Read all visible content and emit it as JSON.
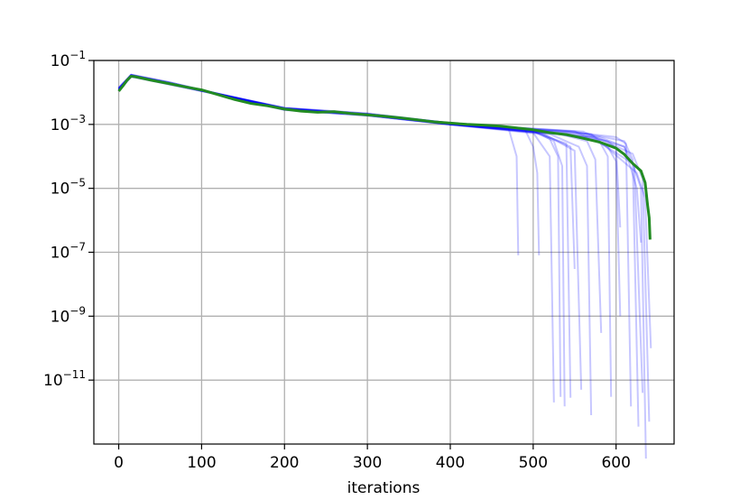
{
  "chart_data": {
    "type": "line",
    "title": "",
    "xlabel": "iterations",
    "ylabel": "",
    "yscale": "log",
    "xlim": [
      -30,
      670
    ],
    "ylim": [
      1e-13,
      0.1
    ],
    "x_ticks": [
      0,
      100,
      200,
      300,
      400,
      500,
      600
    ],
    "y_ticks": [
      {
        "value": 0.1,
        "base": "10",
        "exp": "−1"
      },
      {
        "value": 0.001,
        "base": "10",
        "exp": "−3"
      },
      {
        "value": 1e-05,
        "base": "10",
        "exp": "−5"
      },
      {
        "value": 1e-07,
        "base": "10",
        "exp": "−7"
      },
      {
        "value": 1e-09,
        "base": "10",
        "exp": "−9"
      },
      {
        "value": 1e-11,
        "base": "10",
        "exp": "−11"
      }
    ],
    "grid": true,
    "colors": {
      "runs": "#0000ff",
      "mean": "#228b22",
      "grid": "#b0b0b0"
    },
    "series": [
      {
        "role": "mean",
        "points": [
          [
            0,
            0.011
          ],
          [
            5,
            0.016
          ],
          [
            10,
            0.024
          ],
          [
            15,
            0.032
          ],
          [
            20,
            0.031
          ],
          [
            40,
            0.024
          ],
          [
            60,
            0.019
          ],
          [
            80,
            0.015
          ],
          [
            100,
            0.012
          ],
          [
            120,
            0.0085
          ],
          [
            140,
            0.006
          ],
          [
            160,
            0.0045
          ],
          [
            180,
            0.0038
          ],
          [
            200,
            0.003
          ],
          [
            220,
            0.0026
          ],
          [
            240,
            0.0024
          ],
          [
            260,
            0.0025
          ],
          [
            280,
            0.0022
          ],
          [
            300,
            0.002
          ],
          [
            320,
            0.0018
          ],
          [
            340,
            0.0016
          ],
          [
            360,
            0.0014
          ],
          [
            380,
            0.0012
          ],
          [
            400,
            0.0011
          ],
          [
            420,
            0.001
          ],
          [
            440,
            0.00095
          ],
          [
            460,
            0.00088
          ],
          [
            480,
            0.00078
          ],
          [
            500,
            0.00068
          ],
          [
            520,
            0.00055
          ],
          [
            540,
            0.00048
          ],
          [
            560,
            0.00037
          ],
          [
            580,
            0.00028
          ],
          [
            600,
            0.00018
          ],
          [
            610,
            0.000115
          ],
          [
            620,
            6e-05
          ],
          [
            630,
            3.5e-05
          ],
          [
            635,
            1.5e-05
          ],
          [
            638,
            3e-06
          ],
          [
            640,
            1.2e-06
          ],
          [
            641,
            2.5e-07
          ]
        ]
      },
      {
        "role": "run",
        "points": [
          [
            0,
            0.013
          ],
          [
            15,
            0.035
          ],
          [
            60,
            0.02
          ],
          [
            120,
            0.009
          ],
          [
            200,
            0.0032
          ],
          [
            300,
            0.0021
          ],
          [
            400,
            0.0011
          ],
          [
            470,
            0.0008
          ],
          [
            480,
            0.0001
          ],
          [
            482,
            8e-08
          ]
        ]
      },
      {
        "role": "run",
        "points": [
          [
            0,
            0.012
          ],
          [
            15,
            0.033
          ],
          [
            60,
            0.019
          ],
          [
            120,
            0.0088
          ],
          [
            200,
            0.0031
          ],
          [
            300,
            0.002
          ],
          [
            400,
            0.00105
          ],
          [
            490,
            0.0007
          ],
          [
            500,
            0.0002
          ],
          [
            505,
            3e-05
          ],
          [
            507,
            8e-08
          ]
        ]
      },
      {
        "role": "run",
        "points": [
          [
            0,
            0.014
          ],
          [
            15,
            0.034
          ],
          [
            60,
            0.02
          ],
          [
            120,
            0.0091
          ],
          [
            200,
            0.0029
          ],
          [
            300,
            0.0019
          ],
          [
            400,
            0.001
          ],
          [
            500,
            0.0006
          ],
          [
            520,
            0.00035
          ],
          [
            530,
            0.0001
          ],
          [
            533,
            3e-12
          ]
        ]
      },
      {
        "role": "run",
        "points": [
          [
            0,
            0.012
          ],
          [
            15,
            0.032
          ],
          [
            60,
            0.018
          ],
          [
            120,
            0.0087
          ],
          [
            200,
            0.0033
          ],
          [
            300,
            0.0022
          ],
          [
            400,
            0.0011
          ],
          [
            500,
            0.00065
          ],
          [
            525,
            0.0003
          ],
          [
            535,
            5e-05
          ],
          [
            538,
            1.5e-12
          ]
        ]
      },
      {
        "role": "run",
        "points": [
          [
            0,
            0.013
          ],
          [
            15,
            0.036
          ],
          [
            60,
            0.021
          ],
          [
            120,
            0.009
          ],
          [
            200,
            0.003
          ],
          [
            300,
            0.002
          ],
          [
            400,
            0.001
          ],
          [
            500,
            0.0006
          ],
          [
            540,
            0.00025
          ],
          [
            545,
            2.8e-12
          ]
        ]
      },
      {
        "role": "run",
        "points": [
          [
            0,
            0.011
          ],
          [
            15,
            0.031
          ],
          [
            60,
            0.019
          ],
          [
            120,
            0.0086
          ],
          [
            200,
            0.0028
          ],
          [
            300,
            0.0019
          ],
          [
            400,
            0.00098
          ],
          [
            510,
            0.0005
          ],
          [
            545,
            0.0002
          ],
          [
            550,
            3e-08
          ]
        ]
      },
      {
        "role": "run",
        "points": [
          [
            0,
            0.013
          ],
          [
            15,
            0.034
          ],
          [
            60,
            0.02
          ],
          [
            120,
            0.0089
          ],
          [
            200,
            0.0032
          ],
          [
            300,
            0.0021
          ],
          [
            400,
            0.00105
          ],
          [
            510,
            0.00055
          ],
          [
            550,
            0.00015
          ],
          [
            558,
            5e-12
          ]
        ]
      },
      {
        "role": "run",
        "points": [
          [
            0,
            0.012
          ],
          [
            15,
            0.033
          ],
          [
            60,
            0.019
          ],
          [
            120,
            0.0088
          ],
          [
            200,
            0.003
          ],
          [
            300,
            0.002
          ],
          [
            400,
            0.001
          ],
          [
            520,
            0.0005
          ],
          [
            555,
            0.0002
          ],
          [
            565,
            5e-05
          ],
          [
            570,
            8e-13
          ]
        ]
      },
      {
        "role": "run",
        "points": [
          [
            0,
            0.014
          ],
          [
            15,
            0.035
          ],
          [
            60,
            0.02
          ],
          [
            120,
            0.009
          ],
          [
            200,
            0.0031
          ],
          [
            300,
            0.0021
          ],
          [
            400,
            0.0011
          ],
          [
            520,
            0.0006
          ],
          [
            565,
            0.0003
          ],
          [
            575,
            8e-05
          ],
          [
            582,
            3e-10
          ]
        ]
      },
      {
        "role": "run",
        "points": [
          [
            0,
            0.012
          ],
          [
            15,
            0.032
          ],
          [
            60,
            0.019
          ],
          [
            120,
            0.0087
          ],
          [
            200,
            0.0029
          ],
          [
            300,
            0.0019
          ],
          [
            400,
            0.001
          ],
          [
            530,
            0.0005
          ],
          [
            580,
            0.0003
          ],
          [
            590,
            0.0001
          ],
          [
            594,
            3e-12
          ]
        ]
      },
      {
        "role": "run",
        "points": [
          [
            0,
            0.013
          ],
          [
            15,
            0.034
          ],
          [
            60,
            0.02
          ],
          [
            120,
            0.0089
          ],
          [
            200,
            0.0032
          ],
          [
            300,
            0.002
          ],
          [
            400,
            0.00105
          ],
          [
            540,
            0.0005
          ],
          [
            590,
            0.0003
          ],
          [
            600,
            0.00018
          ],
          [
            605,
            6e-07
          ]
        ]
      },
      {
        "role": "run",
        "points": [
          [
            0,
            0.011
          ],
          [
            15,
            0.031
          ],
          [
            60,
            0.018
          ],
          [
            120,
            0.0085
          ],
          [
            200,
            0.003
          ],
          [
            300,
            0.002
          ],
          [
            400,
            0.001
          ],
          [
            540,
            0.0006
          ],
          [
            600,
            0.0004
          ],
          [
            612,
            0.00025
          ],
          [
            618,
            1.5e-12
          ]
        ]
      },
      {
        "role": "run",
        "points": [
          [
            0,
            0.013
          ],
          [
            15,
            0.035
          ],
          [
            60,
            0.021
          ],
          [
            120,
            0.009
          ],
          [
            200,
            0.0033
          ],
          [
            300,
            0.0022
          ],
          [
            400,
            0.0011
          ],
          [
            550,
            0.0006
          ],
          [
            610,
            0.0003
          ],
          [
            620,
            8e-05
          ],
          [
            627,
            3.5e-13
          ]
        ]
      },
      {
        "role": "run",
        "points": [
          [
            0,
            0.012
          ],
          [
            15,
            0.033
          ],
          [
            60,
            0.019
          ],
          [
            120,
            0.0088
          ],
          [
            200,
            0.003
          ],
          [
            300,
            0.002
          ],
          [
            400,
            0.001
          ],
          [
            560,
            0.0005
          ],
          [
            610,
            0.0002
          ],
          [
            622,
            5e-05
          ],
          [
            632,
            4e-12
          ]
        ]
      },
      {
        "role": "run",
        "points": [
          [
            0,
            0.013
          ],
          [
            15,
            0.034
          ],
          [
            60,
            0.02
          ],
          [
            120,
            0.009
          ],
          [
            200,
            0.0031
          ],
          [
            300,
            0.0021
          ],
          [
            400,
            0.00105
          ],
          [
            560,
            0.0006
          ],
          [
            620,
            0.00012
          ],
          [
            632,
            2e-05
          ],
          [
            640,
            5e-13
          ]
        ]
      },
      {
        "role": "run",
        "points": [
          [
            0,
            0.012
          ],
          [
            15,
            0.032
          ],
          [
            60,
            0.019
          ],
          [
            120,
            0.0086
          ],
          [
            200,
            0.0029
          ],
          [
            300,
            0.0019
          ],
          [
            400,
            0.00098
          ],
          [
            570,
            0.0004
          ],
          [
            620,
            6e-05
          ],
          [
            630,
            1e-05
          ],
          [
            636,
            3.5e-14
          ]
        ]
      },
      {
        "role": "run",
        "points": [
          [
            0,
            0.014
          ],
          [
            15,
            0.036
          ],
          [
            60,
            0.021
          ],
          [
            120,
            0.0092
          ],
          [
            200,
            0.0032
          ],
          [
            300,
            0.0021
          ],
          [
            400,
            0.0011
          ],
          [
            570,
            0.0005
          ],
          [
            625,
            3e-05
          ],
          [
            635,
            5e-06
          ],
          [
            642,
            1e-10
          ]
        ]
      },
      {
        "role": "run",
        "points": [
          [
            0,
            0.012
          ],
          [
            15,
            0.033
          ],
          [
            60,
            0.019
          ],
          [
            120,
            0.0088
          ],
          [
            200,
            0.003
          ],
          [
            300,
            0.002
          ],
          [
            400,
            0.001
          ],
          [
            580,
            0.0004
          ],
          [
            610,
            0.0002
          ],
          [
            625,
            1e-05
          ],
          [
            630,
            2e-07
          ]
        ]
      },
      {
        "role": "run",
        "points": [
          [
            0,
            0.013
          ],
          [
            15,
            0.034
          ],
          [
            60,
            0.02
          ],
          [
            120,
            0.0089
          ],
          [
            200,
            0.0031
          ],
          [
            300,
            0.002
          ],
          [
            400,
            0.00102
          ],
          [
            550,
            0.0006
          ],
          [
            590,
            0.0002
          ],
          [
            600,
            7e-05
          ],
          [
            605,
            1e-09
          ]
        ]
      },
      {
        "role": "run",
        "points": [
          [
            0,
            0.012
          ],
          [
            15,
            0.033
          ],
          [
            60,
            0.019
          ],
          [
            120,
            0.0087
          ],
          [
            200,
            0.003
          ],
          [
            300,
            0.002
          ],
          [
            400,
            0.001
          ],
          [
            500,
            0.00055
          ],
          [
            520,
            0.0001
          ],
          [
            525,
            2e-12
          ]
        ]
      }
    ]
  }
}
